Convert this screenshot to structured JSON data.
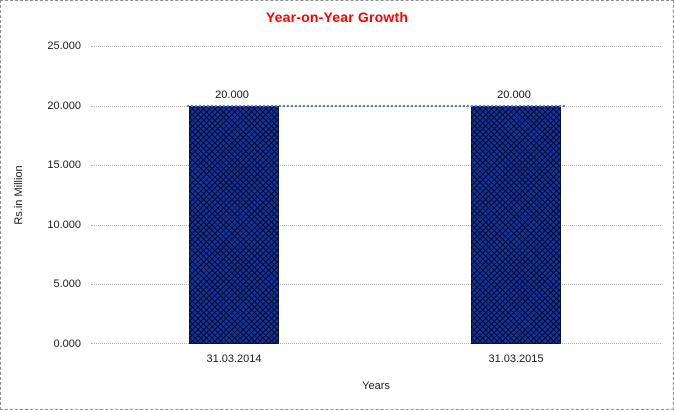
{
  "chart": {
    "title": "Year-on-Year Growth",
    "title_color": "#ff0000",
    "background": "#ffffff",
    "border_style": "dashed"
  },
  "chart_data": {
    "type": "bar",
    "title": "Year-on-Year Growth",
    "xlabel": "Years",
    "ylabel": "Rs.in Million",
    "categories": [
      "31.03.2014",
      "31.03.2015"
    ],
    "series": [
      {
        "name": "Rs.in Million",
        "type": "bar",
        "values": [
          20.0,
          20.0
        ]
      },
      {
        "name": "trend",
        "type": "line",
        "values": [
          20.0,
          20.0
        ]
      }
    ],
    "data_labels": [
      "20.000",
      "20.000"
    ],
    "ylim": [
      0,
      25
    ],
    "ytick_step": 5,
    "ytick_labels": [
      "25.000",
      "20.000",
      "15.000",
      "10.000",
      "5.000",
      "0.000"
    ],
    "grid": true,
    "gridline_style": "dotted",
    "legend_position": "none",
    "bar_color": "#16339b",
    "bar_pattern": "dark-diamond-hatch",
    "line_color": "#4d7de2",
    "line_style": "dotted"
  }
}
